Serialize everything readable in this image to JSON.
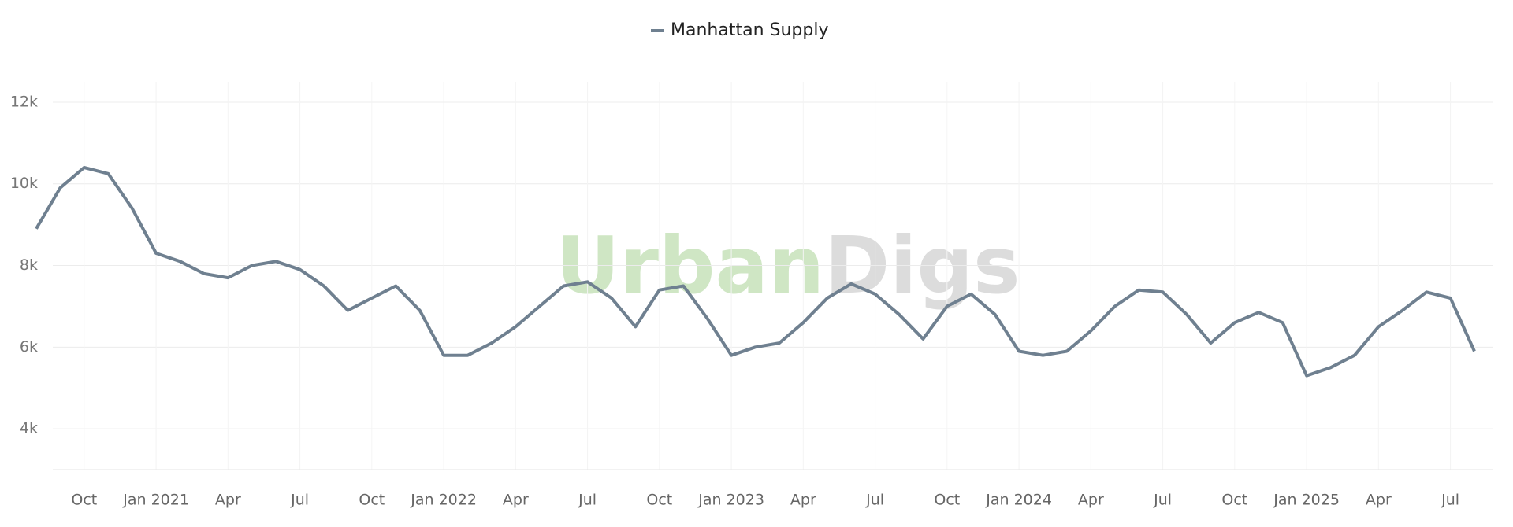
{
  "chart_data": {
    "type": "line",
    "watermark": {
      "parts": [
        "Urban",
        "Digs"
      ],
      "colors": [
        "#cfe6c4",
        "#dcdcdc"
      ]
    },
    "x": [
      "2020-08",
      "2020-09",
      "2020-10",
      "2020-11",
      "2020-12",
      "2021-01",
      "2021-02",
      "2021-03",
      "2021-04",
      "2021-05",
      "2021-06",
      "2021-07",
      "2021-08",
      "2021-09",
      "2021-10",
      "2021-11",
      "2021-12",
      "2022-01",
      "2022-02",
      "2022-03",
      "2022-04",
      "2022-05",
      "2022-06",
      "2022-07",
      "2022-08",
      "2022-09",
      "2022-10",
      "2022-11",
      "2022-12",
      "2023-01",
      "2023-02",
      "2023-03",
      "2023-04",
      "2023-05",
      "2023-06",
      "2023-07",
      "2023-08",
      "2023-09",
      "2023-10",
      "2023-11",
      "2023-12",
      "2024-01",
      "2024-02",
      "2024-03",
      "2024-04",
      "2024-05",
      "2024-06",
      "2024-07",
      "2024-08",
      "2024-09",
      "2024-10",
      "2024-11",
      "2024-12",
      "2025-01",
      "2025-02",
      "2025-03",
      "2025-04",
      "2025-05",
      "2025-06",
      "2025-07",
      "2025-08"
    ],
    "series": [
      {
        "name": "Manhattan Supply",
        "color": "#6f8090",
        "values": [
          8900,
          9900,
          10400,
          10250,
          9400,
          8300,
          8100,
          7800,
          7700,
          8000,
          8100,
          7900,
          7500,
          6900,
          7200,
          7500,
          6900,
          5800,
          5800,
          6100,
          6500,
          7000,
          7500,
          7600,
          7200,
          6500,
          7400,
          7500,
          6700,
          5800,
          6000,
          6100,
          6600,
          7200,
          7550,
          7300,
          6800,
          6200,
          7000,
          7300,
          6800,
          5900,
          5800,
          5900,
          6400,
          7000,
          7400,
          7350,
          6800,
          6100,
          6600,
          6850,
          6600,
          5300,
          5500,
          5800,
          6500,
          6900,
          7350,
          7200,
          5900
        ]
      }
    ],
    "xlim": [
      "2020-08",
      "2025-08"
    ],
    "xticks": [
      {
        "value": "2020-10",
        "label": "Oct"
      },
      {
        "value": "2021-01",
        "label": "Jan 2021"
      },
      {
        "value": "2021-04",
        "label": "Apr"
      },
      {
        "value": "2021-07",
        "label": "Jul"
      },
      {
        "value": "2021-10",
        "label": "Oct"
      },
      {
        "value": "2022-01",
        "label": "Jan 2022"
      },
      {
        "value": "2022-04",
        "label": "Apr"
      },
      {
        "value": "2022-07",
        "label": "Jul"
      },
      {
        "value": "2022-10",
        "label": "Oct"
      },
      {
        "value": "2023-01",
        "label": "Jan 2023"
      },
      {
        "value": "2023-04",
        "label": "Apr"
      },
      {
        "value": "2023-07",
        "label": "Jul"
      },
      {
        "value": "2023-10",
        "label": "Oct"
      },
      {
        "value": "2024-01",
        "label": "Jan 2024"
      },
      {
        "value": "2024-04",
        "label": "Apr"
      },
      {
        "value": "2024-07",
        "label": "Jul"
      },
      {
        "value": "2024-10",
        "label": "Oct"
      },
      {
        "value": "2025-01",
        "label": "Jan 2025"
      },
      {
        "value": "2025-04",
        "label": "Apr"
      },
      {
        "value": "2025-07",
        "label": "Jul"
      }
    ],
    "ylim": [
      3000,
      12500
    ],
    "yticks": [
      {
        "value": 4000,
        "label": "4k"
      },
      {
        "value": 6000,
        "label": "6k"
      },
      {
        "value": 8000,
        "label": "8k"
      },
      {
        "value": 10000,
        "label": "10k"
      },
      {
        "value": 12000,
        "label": "12k"
      }
    ],
    "grid": true,
    "legend": "top"
  }
}
